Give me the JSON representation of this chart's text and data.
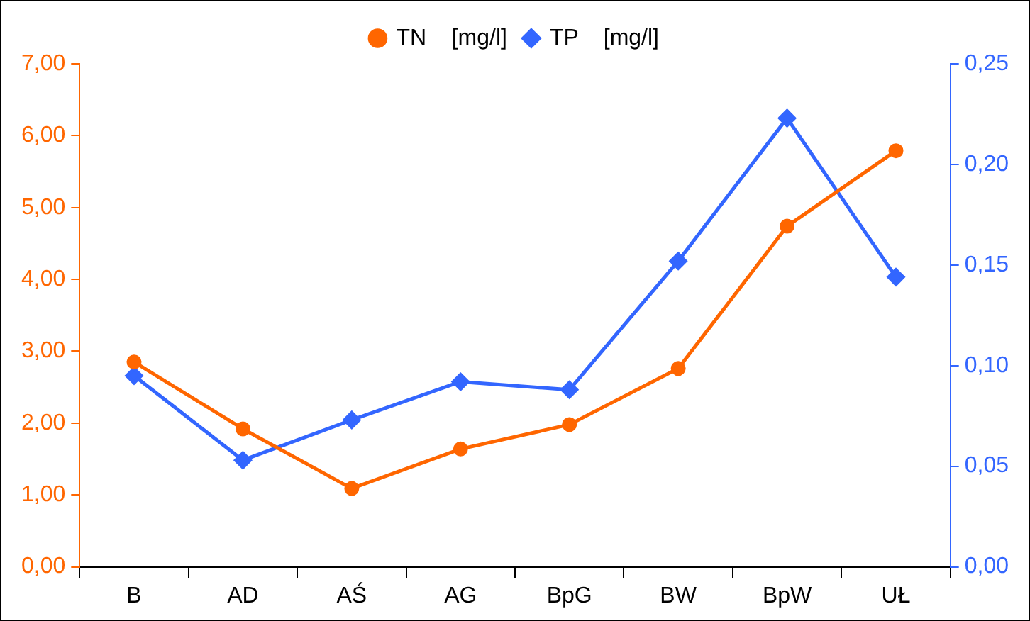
{
  "chart_data": {
    "type": "line",
    "categories": [
      "B",
      "AD",
      "AŚ",
      "AG",
      "BpG",
      "BW",
      "BpW",
      "UŁ"
    ],
    "series": [
      {
        "name": "TN    [mg/l]",
        "color": "#ff6600",
        "marker": "circle",
        "values": [
          2.85,
          1.92,
          1.09,
          1.64,
          1.98,
          2.76,
          4.74,
          5.79
        ]
      },
      {
        "name": "TP    [mg/l]",
        "color": "#3366ff",
        "marker": "diamond",
        "axis": "y2",
        "values": [
          0.095,
          0.053,
          0.073,
          0.092,
          0.088,
          0.152,
          0.223,
          0.144
        ]
      }
    ],
    "ylim": [
      0,
      7
    ],
    "yticks": [
      {
        "value": 0,
        "label": "0,00"
      },
      {
        "value": 1,
        "label": "1,00"
      },
      {
        "value": 2,
        "label": "2,00"
      },
      {
        "value": 3,
        "label": "3,00"
      },
      {
        "value": 4,
        "label": "4,00"
      },
      {
        "value": 5,
        "label": "5,00"
      },
      {
        "value": 6,
        "label": "6,00"
      },
      {
        "value": 7,
        "label": "7,00"
      }
    ],
    "y2lim": [
      0,
      0.25
    ],
    "y2ticks": [
      {
        "value": 0,
        "label": "0,00"
      },
      {
        "value": 0.05,
        "label": "0,05"
      },
      {
        "value": 0.1,
        "label": "0,10"
      },
      {
        "value": 0.15,
        "label": "0,15"
      },
      {
        "value": 0.2,
        "label": "0,20"
      },
      {
        "value": 0.25,
        "label": "0,25"
      }
    ],
    "grid": false,
    "legend": "top"
  }
}
